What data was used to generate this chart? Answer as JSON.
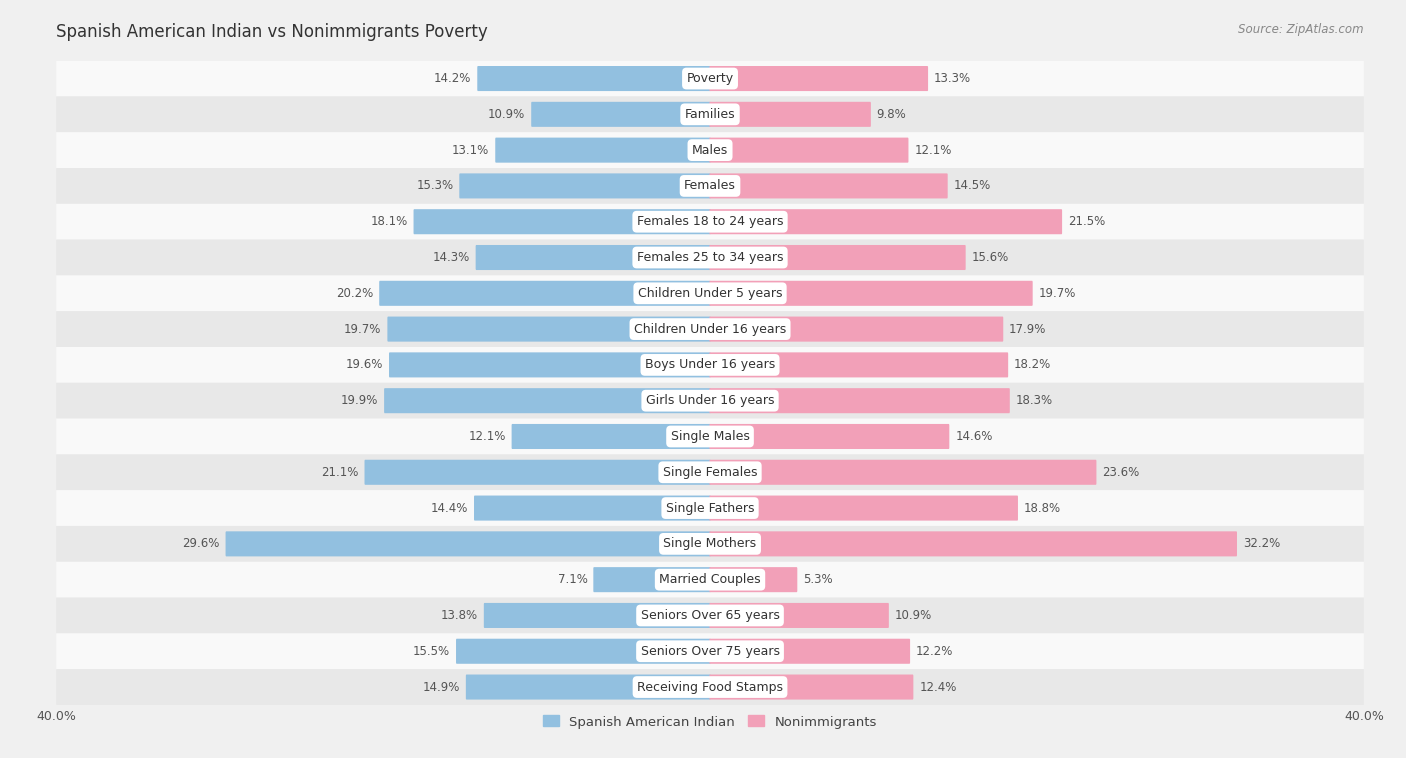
{
  "title": "Spanish American Indian vs Nonimmigrants Poverty",
  "source": "Source: ZipAtlas.com",
  "categories": [
    "Poverty",
    "Families",
    "Males",
    "Females",
    "Females 18 to 24 years",
    "Females 25 to 34 years",
    "Children Under 5 years",
    "Children Under 16 years",
    "Boys Under 16 years",
    "Girls Under 16 years",
    "Single Males",
    "Single Females",
    "Single Fathers",
    "Single Mothers",
    "Married Couples",
    "Seniors Over 65 years",
    "Seniors Over 75 years",
    "Receiving Food Stamps"
  ],
  "left_values": [
    14.2,
    10.9,
    13.1,
    15.3,
    18.1,
    14.3,
    20.2,
    19.7,
    19.6,
    19.9,
    12.1,
    21.1,
    14.4,
    29.6,
    7.1,
    13.8,
    15.5,
    14.9
  ],
  "right_values": [
    13.3,
    9.8,
    12.1,
    14.5,
    21.5,
    15.6,
    19.7,
    17.9,
    18.2,
    18.3,
    14.6,
    23.6,
    18.8,
    32.2,
    5.3,
    10.9,
    12.2,
    12.4
  ],
  "left_color": "#92c0e0",
  "right_color": "#f2a0b8",
  "left_label": "Spanish American Indian",
  "right_label": "Nonimmigrants",
  "xlim": 40.0,
  "bg_outer": "#f0f0f0",
  "row_color_light": "#f9f9f9",
  "row_color_dark": "#e8e8e8",
  "title_fontsize": 12,
  "label_fontsize": 9,
  "value_fontsize": 8.5,
  "source_fontsize": 8.5
}
